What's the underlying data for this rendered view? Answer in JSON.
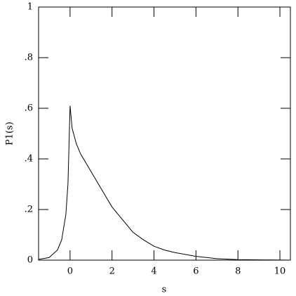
{
  "chart_data": {
    "type": "line",
    "xlabel": "s",
    "ylabel": "P1(s)",
    "x": [
      -1.5,
      -1,
      -0.6,
      -0.4,
      -0.2,
      -0.1,
      0,
      0.1,
      0.3,
      0.5,
      1,
      1.5,
      2,
      2.5,
      3,
      3.5,
      4,
      4.5,
      5,
      6,
      7,
      8,
      10.5
    ],
    "series": [
      {
        "color": "#000000",
        "values": [
          0.003,
          0.01,
          0.04,
          0.08,
          0.18,
          0.3,
          0.61,
          0.52,
          0.46,
          0.42,
          0.35,
          0.28,
          0.21,
          0.16,
          0.11,
          0.08,
          0.055,
          0.04,
          0.03,
          0.015,
          0.006,
          0.002,
          0
        ]
      }
    ],
    "xlim": [
      -1.5,
      10.5
    ],
    "ylim": [
      0,
      1
    ],
    "xticks": [
      0,
      2,
      4,
      6,
      8,
      10
    ],
    "yticks": [
      0,
      {
        "value": 0.2,
        "label": ".2"
      },
      {
        "value": 0.4,
        "label": ".4"
      },
      {
        "value": 0.6,
        "label": ".6"
      },
      {
        "value": 0.8,
        "label": ".8"
      },
      1
    ]
  }
}
